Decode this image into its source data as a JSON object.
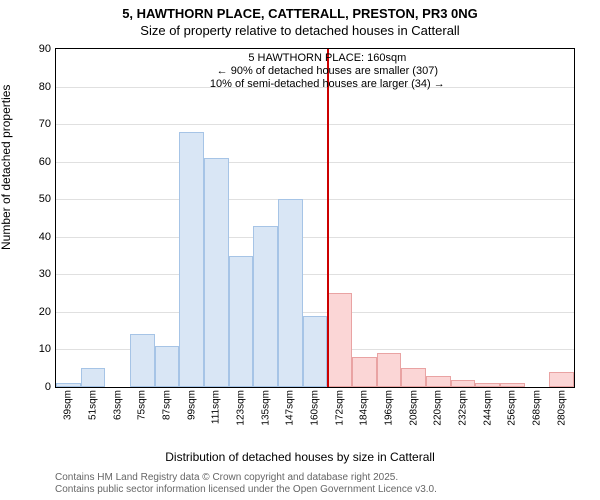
{
  "title": "5, HAWTHORN PLACE, CATTERALL, PRESTON, PR3 0NG",
  "subtitle": "Size of property relative to detached houses in Catterall",
  "chart": {
    "type": "histogram",
    "ylabel": "Number of detached properties",
    "xlabel": "Distribution of detached houses by size in Catterall",
    "ylim": [
      0,
      90
    ],
    "ytick_step": 10,
    "xticks": [
      "39sqm",
      "51sqm",
      "63sqm",
      "75sqm",
      "87sqm",
      "99sqm",
      "111sqm",
      "123sqm",
      "135sqm",
      "147sqm",
      "160sqm",
      "172sqm",
      "184sqm",
      "196sqm",
      "208sqm",
      "220sqm",
      "232sqm",
      "244sqm",
      "256sqm",
      "268sqm",
      "280sqm"
    ],
    "bars": [
      {
        "value": 1,
        "color": "#d9e6f5",
        "border": "#a6c4e6"
      },
      {
        "value": 5,
        "color": "#d9e6f5",
        "border": "#a6c4e6"
      },
      {
        "value": 0,
        "color": "#d9e6f5",
        "border": "#a6c4e6"
      },
      {
        "value": 14,
        "color": "#d9e6f5",
        "border": "#a6c4e6"
      },
      {
        "value": 11,
        "color": "#d9e6f5",
        "border": "#a6c4e6"
      },
      {
        "value": 68,
        "color": "#d9e6f5",
        "border": "#a6c4e6"
      },
      {
        "value": 61,
        "color": "#d9e6f5",
        "border": "#a6c4e6"
      },
      {
        "value": 35,
        "color": "#d9e6f5",
        "border": "#a6c4e6"
      },
      {
        "value": 43,
        "color": "#d9e6f5",
        "border": "#a6c4e6"
      },
      {
        "value": 50,
        "color": "#d9e6f5",
        "border": "#a6c4e6"
      },
      {
        "value": 19,
        "color": "#d9e6f5",
        "border": "#a6c4e6"
      },
      {
        "value": 25,
        "color": "#fbd6d6",
        "border": "#e9a3a3"
      },
      {
        "value": 8,
        "color": "#fbd6d6",
        "border": "#e9a3a3"
      },
      {
        "value": 9,
        "color": "#fbd6d6",
        "border": "#e9a3a3"
      },
      {
        "value": 5,
        "color": "#fbd6d6",
        "border": "#e9a3a3"
      },
      {
        "value": 3,
        "color": "#fbd6d6",
        "border": "#e9a3a3"
      },
      {
        "value": 2,
        "color": "#fbd6d6",
        "border": "#e9a3a3"
      },
      {
        "value": 1,
        "color": "#fbd6d6",
        "border": "#e9a3a3"
      },
      {
        "value": 1,
        "color": "#fbd6d6",
        "border": "#e9a3a3"
      },
      {
        "value": 0,
        "color": "#fbd6d6",
        "border": "#e9a3a3"
      },
      {
        "value": 4,
        "color": "#fbd6d6",
        "border": "#e9a3a3"
      }
    ],
    "highlight": {
      "position_index": 11,
      "color": "#cc0000",
      "width": 2
    },
    "annotation": {
      "line1": "5 HAWTHORN PLACE: 160sqm",
      "line2": "← 90% of detached houses are smaller (307)",
      "line3": "10% of semi-detached houses are larger (34) →"
    },
    "grid_color": "#e0e0e0",
    "background_color": "#ffffff",
    "border_color": "#000000"
  },
  "footer": {
    "line1": "Contains HM Land Registry data © Crown copyright and database right 2025.",
    "line2": "Contains public sector information licensed under the Open Government Licence v3.0."
  }
}
